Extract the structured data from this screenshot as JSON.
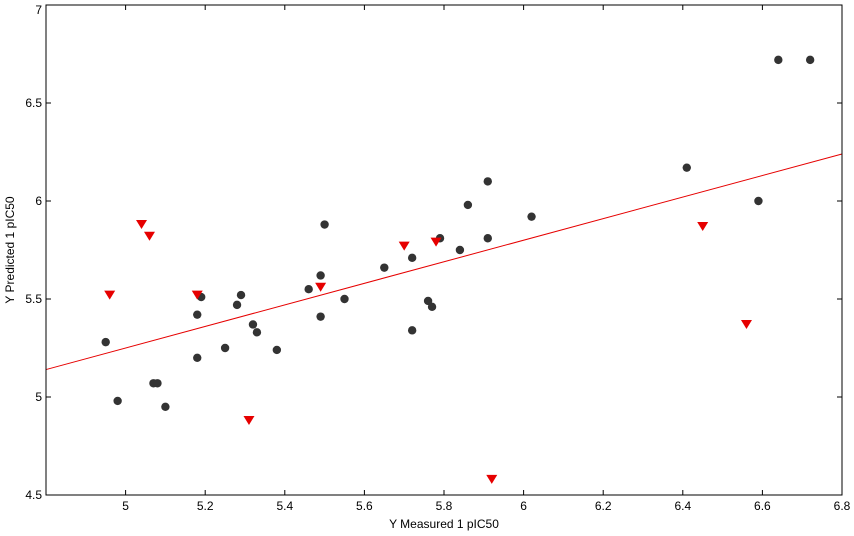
{
  "chart_data": {
    "type": "scatter",
    "title": "",
    "xlabel": "Y Measured 1 pIC50",
    "ylabel": "Y Predicted 1 pIC50",
    "xlim": [
      4.8,
      6.8
    ],
    "ylim": [
      4.5,
      7.0
    ],
    "xticks": [
      5,
      5.2,
      5.4,
      5.6,
      5.8,
      6,
      6.2,
      6.4,
      6.6,
      6.8
    ],
    "xtick_labels": [
      "5",
      "5.2",
      "5.4",
      "5.6",
      "5.8",
      "6",
      "6.2",
      "6.4",
      "6.6",
      "6.8"
    ],
    "yticks": [
      4.5,
      5,
      5.5,
      6,
      6.5,
      7
    ],
    "ytick_labels": [
      "4.5",
      "5",
      "5.5",
      "6",
      "6.5",
      "7"
    ],
    "grid": false,
    "legend": "none",
    "series": [
      {
        "marker": "circle",
        "color": "#333333",
        "x": [
          4.95,
          4.98,
          5.07,
          5.08,
          5.1,
          5.18,
          5.18,
          5.19,
          5.25,
          5.28,
          5.29,
          5.32,
          5.33,
          5.38,
          5.46,
          5.49,
          5.49,
          5.5,
          5.55,
          5.65,
          5.72,
          5.72,
          5.76,
          5.77,
          5.79,
          5.84,
          5.86,
          5.91,
          5.91,
          6.02,
          6.41,
          6.59,
          6.64,
          6.72
        ],
        "y": [
          5.28,
          4.98,
          5.07,
          5.07,
          4.95,
          5.42,
          5.2,
          5.51,
          5.25,
          5.47,
          5.52,
          5.37,
          5.33,
          5.24,
          5.55,
          5.41,
          5.62,
          5.88,
          5.5,
          5.66,
          5.71,
          5.34,
          5.49,
          5.46,
          5.81,
          5.75,
          5.98,
          5.81,
          6.1,
          5.92,
          6.17,
          6.0,
          6.72,
          6.72
        ]
      },
      {
        "marker": "triangle-down",
        "color": "#e60000",
        "x": [
          4.96,
          5.04,
          5.06,
          5.18,
          5.31,
          5.49,
          5.7,
          5.78,
          5.92,
          6.45,
          6.56
        ],
        "y": [
          5.52,
          5.88,
          5.82,
          5.52,
          4.88,
          5.56,
          5.77,
          5.79,
          4.58,
          5.87,
          5.37
        ]
      }
    ],
    "fit_line": {
      "color": "#e60000",
      "x": [
        4.8,
        6.8
      ],
      "y": [
        5.14,
        6.24
      ]
    }
  }
}
